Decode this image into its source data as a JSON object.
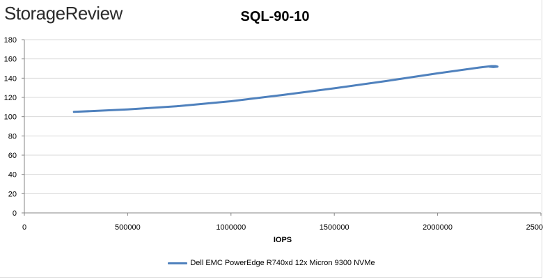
{
  "brand": "StorageReview",
  "chart_data": {
    "type": "line",
    "title": "SQL-90-10",
    "xlabel": "IOPS",
    "ylabel": "",
    "xlim": [
      0,
      2500000
    ],
    "ylim": [
      0,
      180
    ],
    "xticks": [
      0,
      500000,
      1000000,
      1500000,
      2000000,
      2500000
    ],
    "xtick_labels": [
      "0",
      "500000",
      "1000000",
      "1500000",
      "2000000",
      "2500000"
    ],
    "yticks": [
      0,
      20,
      40,
      60,
      80,
      100,
      120,
      140,
      160,
      180
    ],
    "grid": "horizontal",
    "legend_position": "bottom",
    "series": [
      {
        "name": "Dell EMC PowerEdge R740xd 12x Micron 9300 NVMe",
        "color": "#4f81bd",
        "x": [
          240000,
          500000,
          750000,
          1000000,
          1250000,
          1500000,
          1750000,
          2000000,
          2200000,
          2260000,
          2280000,
          2290000,
          2270000,
          2250000
        ],
        "y": [
          105,
          107.5,
          111,
          116,
          122.5,
          129.5,
          137,
          145,
          151,
          152.5,
          152.5,
          152,
          151.5,
          152
        ]
      }
    ]
  }
}
